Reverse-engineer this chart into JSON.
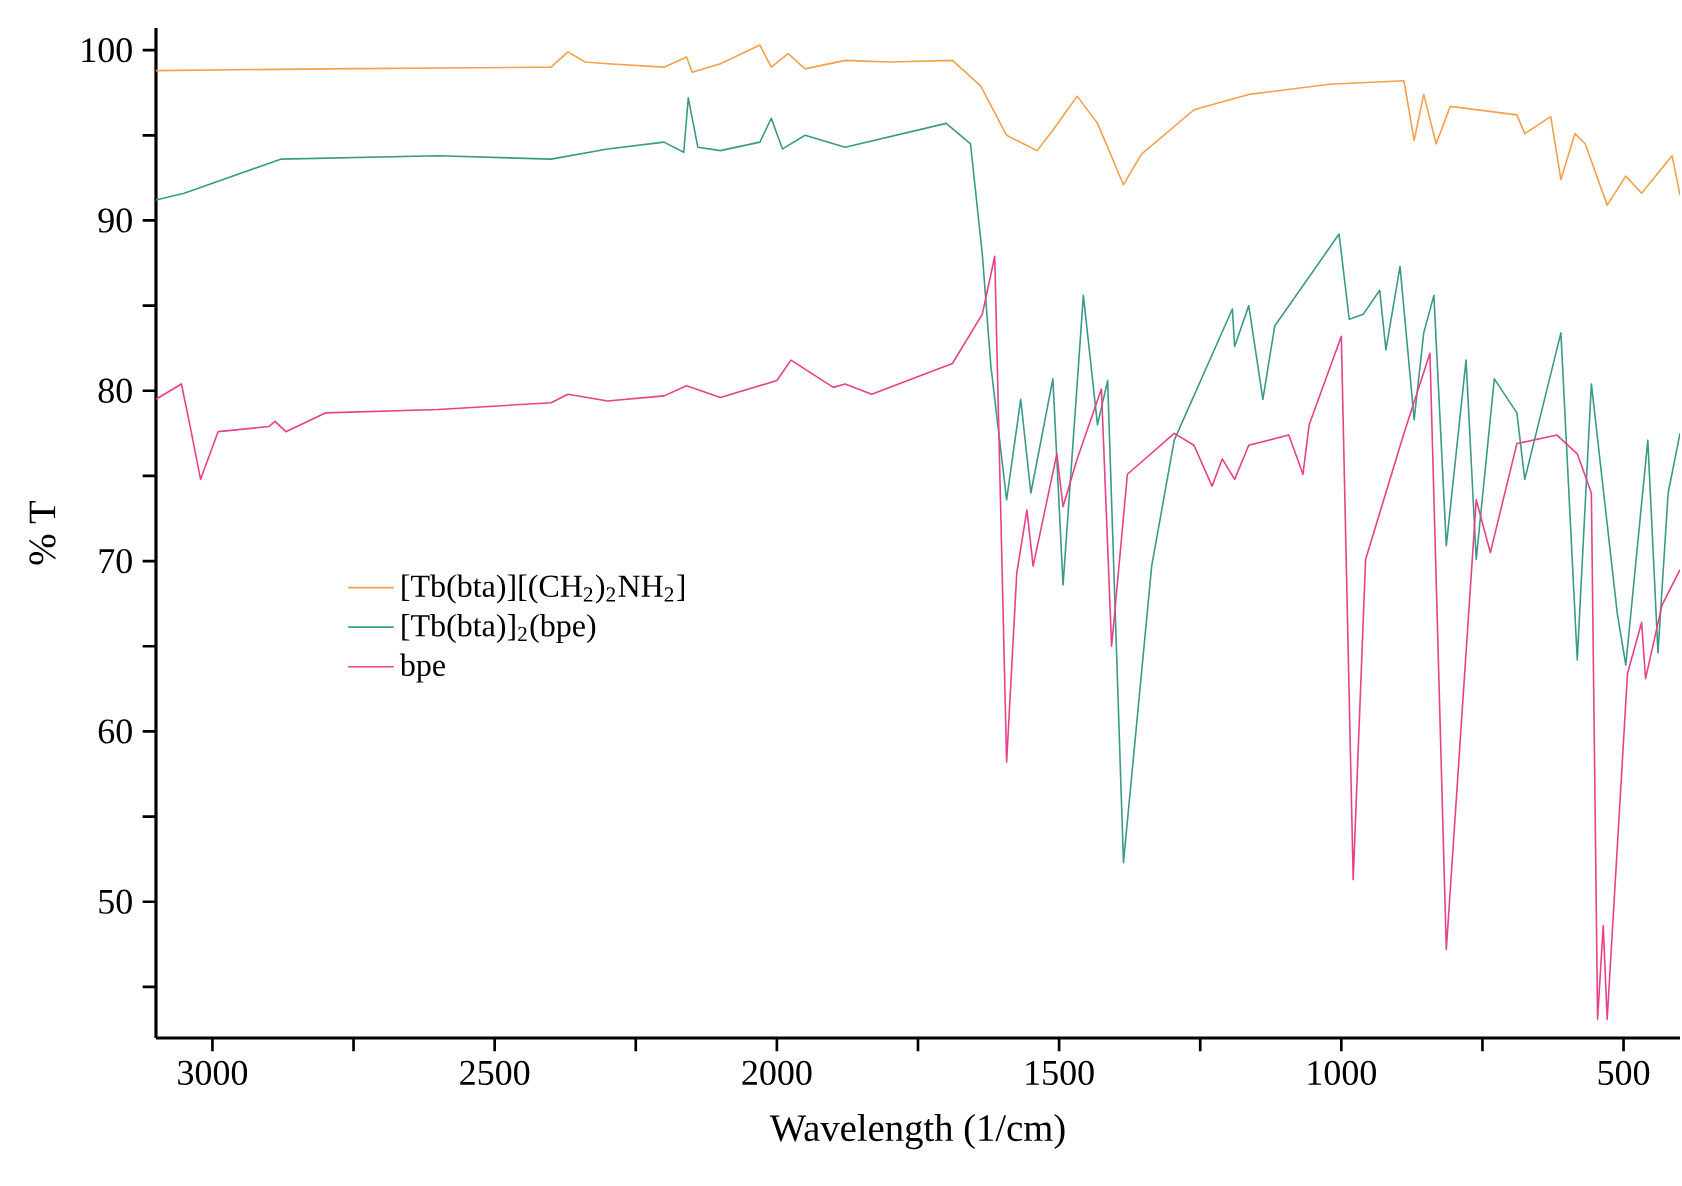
{
  "chart_data": {
    "type": "line",
    "xlabel": "Wavelength (1/cm)",
    "ylabel": "% T",
    "xlim": [
      3100,
      400
    ],
    "ylim": [
      42,
      101.3
    ],
    "xticks": [
      3000,
      {
        "value": 2750,
        "label": null
      },
      2500,
      {
        "value": 2250,
        "label": null
      },
      2000,
      {
        "value": 1750,
        "label": null
      },
      1500,
      {
        "value": 1250,
        "label": null
      },
      1000,
      {
        "value": 750,
        "label": null
      },
      500
    ],
    "yticks": [
      {
        "value": 45,
        "label": null
      },
      50,
      {
        "value": 55,
        "label": null
      },
      60,
      {
        "value": 65,
        "label": null
      },
      70,
      {
        "value": 75,
        "label": null
      },
      80,
      {
        "value": 85,
        "label": null
      },
      90,
      {
        "value": 95,
        "label": null
      },
      100
    ],
    "grid": false,
    "legend": "left",
    "marker": "none",
    "line_style": "solid",
    "series": [
      {
        "name": "[Tb(bta)][(CH$_{2}$)$_{2}$NH$_{2}$]",
        "color": "#f5a04a",
        "x": [
          3100,
          2800,
          2400,
          2370,
          2340,
          2300,
          2200,
          2160,
          2150,
          2100,
          2030,
          2010,
          1980,
          1950,
          1879,
          1800,
          1689,
          1639,
          1593,
          1539,
          1511,
          1468,
          1432,
          1386,
          1354,
          1261,
          1164,
          1021,
          889,
          871,
          854,
          832,
          807,
          689,
          675,
          629,
          611,
          586,
          568,
          529,
          496,
          468,
          414,
          400
        ],
        "values": [
          98.8,
          98.9,
          99.0,
          99.9,
          99.3,
          99.2,
          99.0,
          99.6,
          98.7,
          99.2,
          100.3,
          99.0,
          99.8,
          98.9,
          99.4,
          99.3,
          99.4,
          97.9,
          95.0,
          94.1,
          95.3,
          97.3,
          95.7,
          92.1,
          93.9,
          96.5,
          97.4,
          98.0,
          98.2,
          94.7,
          97.4,
          94.5,
          96.7,
          96.2,
          95.1,
          96.1,
          92.4,
          95.1,
          94.5,
          90.9,
          92.6,
          91.6,
          93.8,
          91.5
        ]
      },
      {
        "name": "[Tb(bta)]$_{2}$(bpe)",
        "color": "#3a9a8a",
        "x": [
          3100,
          3050,
          2879,
          2600,
          2400,
          2300,
          2200,
          2165,
          2157,
          2140,
          2100,
          2030,
          2010,
          1990,
          1950,
          1879,
          1700,
          1657,
          1636,
          1621,
          1593,
          1568,
          1550,
          1511,
          1493,
          1457,
          1432,
          1414,
          1386,
          1336,
          1296,
          1193,
          1189,
          1164,
          1139,
          1118,
          1004,
          986,
          961,
          932,
          921,
          896,
          871,
          854,
          836,
          814,
          779,
          761,
          729,
          689,
          675,
          611,
          582,
          557,
          511,
          496,
          457,
          439,
          421,
          400
        ],
        "values": [
          91.2,
          91.6,
          93.6,
          93.8,
          93.6,
          94.2,
          94.6,
          94.0,
          97.2,
          94.3,
          94.1,
          94.6,
          96.0,
          94.2,
          95.0,
          94.3,
          95.7,
          94.5,
          88.0,
          81.5,
          73.6,
          79.5,
          74.0,
          80.7,
          68.6,
          85.6,
          78.0,
          80.6,
          52.3,
          69.7,
          77.1,
          84.8,
          82.6,
          85.0,
          79.5,
          83.8,
          89.2,
          84.2,
          84.5,
          85.9,
          82.4,
          87.3,
          78.3,
          83.4,
          85.6,
          70.9,
          81.8,
          70.1,
          80.7,
          78.7,
          74.8,
          83.4,
          64.2,
          80.4,
          66.9,
          63.9,
          77.1,
          64.6,
          74.0,
          77.5
        ]
      },
      {
        "name": "bpe",
        "color": "#e8408a",
        "x": [
          3100,
          3055,
          3040,
          3021,
          2990,
          2900,
          2889,
          2870,
          2800,
          2600,
          2400,
          2370,
          2300,
          2200,
          2160,
          2100,
          2000,
          1975,
          1900,
          1879,
          1832,
          1689,
          1636,
          1614,
          1593,
          1575,
          1557,
          1546,
          1504,
          1493,
          1468,
          1425,
          1407,
          1379,
          1296,
          1261,
          1229,
          1211,
          1189,
          1164,
          1093,
          1068,
          1057,
          1000,
          979,
          957,
          889,
          843,
          814,
          761,
          736,
          689,
          618,
          582,
          557,
          546,
          536,
          529,
          493,
          468,
          461,
          432,
          400
        ],
        "values": [
          79.5,
          80.4,
          78.0,
          74.8,
          77.6,
          77.9,
          78.2,
          77.6,
          78.7,
          78.9,
          79.3,
          79.8,
          79.4,
          79.7,
          80.3,
          79.6,
          80.6,
          81.8,
          80.2,
          80.4,
          79.8,
          81.6,
          84.5,
          87.9,
          58.2,
          69.3,
          73.0,
          69.7,
          76.3,
          73.2,
          76.0,
          80.1,
          65.0,
          75.1,
          77.5,
          76.8,
          74.4,
          76.0,
          74.8,
          76.8,
          77.4,
          75.1,
          78.0,
          83.2,
          51.3,
          70.1,
          77.5,
          82.2,
          47.2,
          73.6,
          70.5,
          76.9,
          77.4,
          76.3,
          74.0,
          43.1,
          48.6,
          43.1,
          63.4,
          66.4,
          63.1,
          67.4,
          69.5
        ]
      }
    ]
  }
}
